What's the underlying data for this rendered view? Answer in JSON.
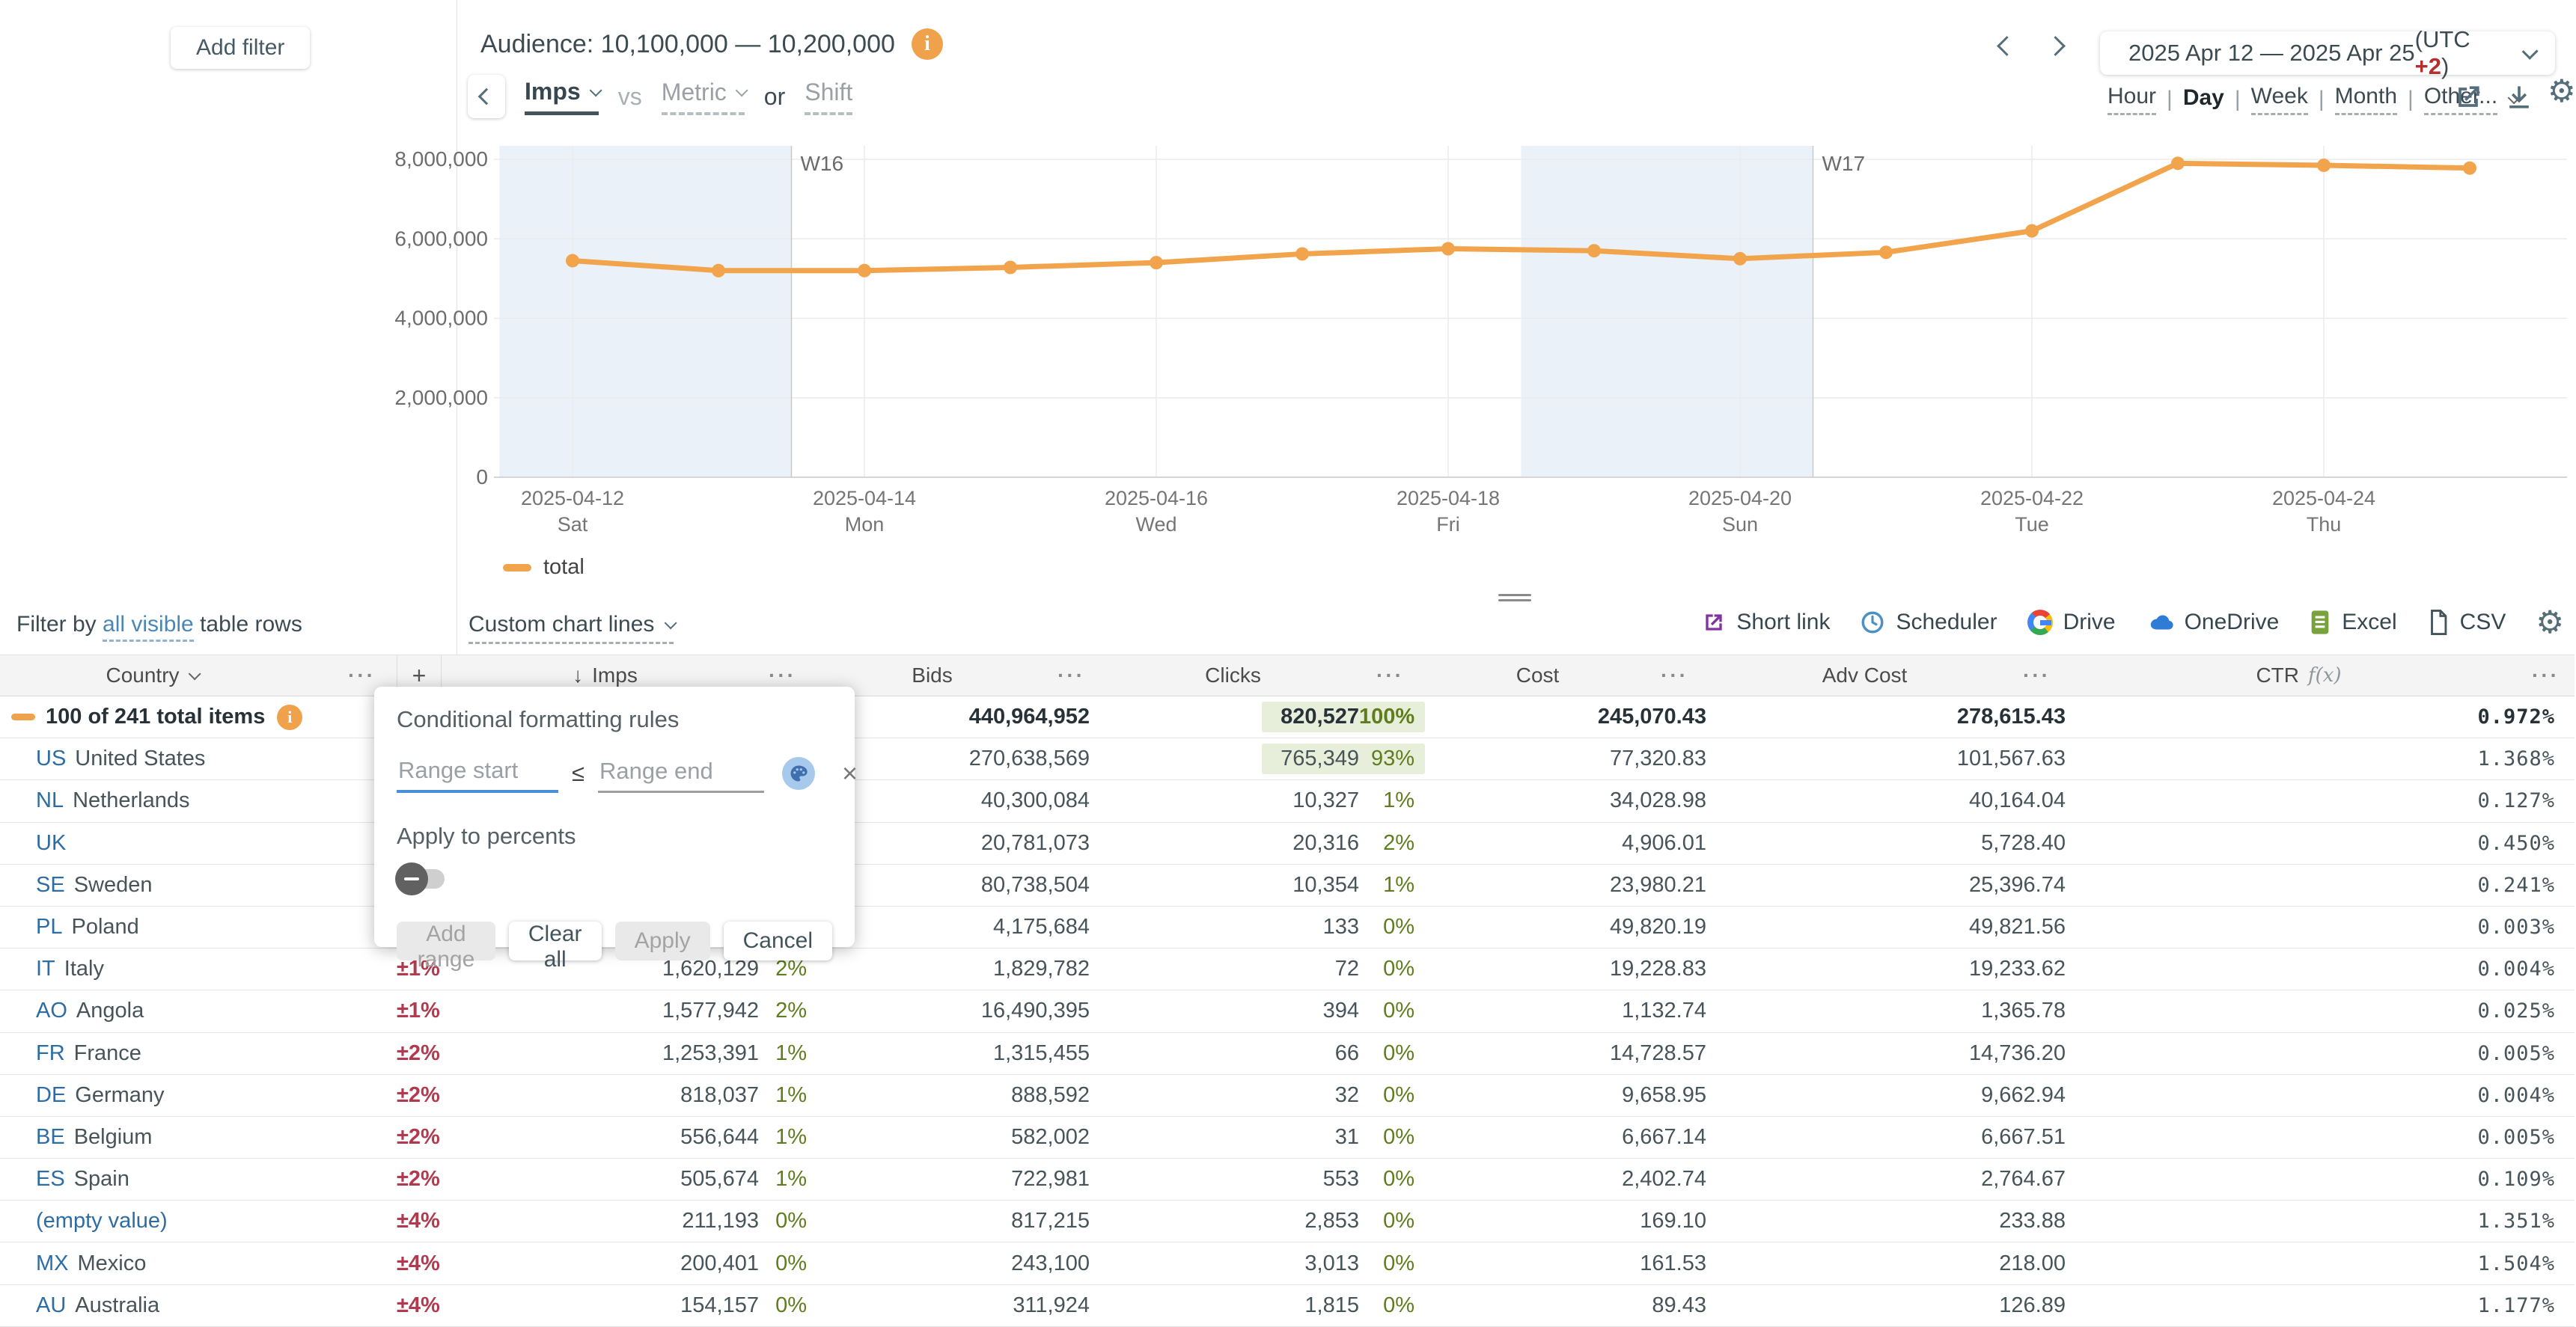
{
  "filters": {
    "add_filter": "Add filter",
    "filter_by_prefix": "Filter by",
    "filter_by_link": "all visible",
    "filter_by_suffix": "table rows"
  },
  "header": {
    "audience": "Audience: 10,100,000 — 10,200,000",
    "metric_selected": "Imps",
    "vs": "vs",
    "metric_placeholder": "Metric",
    "or": "or",
    "shift": "Shift"
  },
  "datepicker": {
    "range": "2025 Apr 12 — 2025 Apr 25",
    "utc_prefix": "(UTC ",
    "utc_value": "+2",
    "utc_suffix": ")"
  },
  "granularity": {
    "options": [
      "Hour",
      "Day",
      "Week",
      "Month",
      "Other..."
    ],
    "selected": "Day"
  },
  "chart_data": {
    "type": "line",
    "title": "",
    "xlabel": "",
    "ylabel": "",
    "ylim": [
      0,
      8450000
    ],
    "yticks": [
      0,
      2000000,
      4000000,
      6000000,
      8000000
    ],
    "legend_position": "bottom-left",
    "series": [
      {
        "name": "total",
        "color": "#f2a44c",
        "x": [
          "2025-04-12",
          "2025-04-13",
          "2025-04-14",
          "2025-04-15",
          "2025-04-16",
          "2025-04-17",
          "2025-04-18",
          "2025-04-19",
          "2025-04-20",
          "2025-04-21",
          "2025-04-22",
          "2025-04-23",
          "2025-04-24",
          "2025-04-25"
        ],
        "values": [
          5450000,
          5200000,
          5200000,
          5280000,
          5400000,
          5620000,
          5750000,
          5700000,
          5500000,
          5660000,
          6200000,
          7900000,
          7850000,
          7780000
        ]
      }
    ],
    "x_tick_labels": [
      {
        "date": "2025-04-12",
        "day": "Sat"
      },
      {
        "date": "2025-04-14",
        "day": "Mon"
      },
      {
        "date": "2025-04-16",
        "day": "Wed"
      },
      {
        "date": "2025-04-18",
        "day": "Fri"
      },
      {
        "date": "2025-04-20",
        "day": "Sun"
      },
      {
        "date": "2025-04-22",
        "day": "Tue"
      },
      {
        "date": "2025-04-24",
        "day": "Thu"
      }
    ],
    "week_markers": [
      {
        "label": "W16",
        "at": "2025-04-14"
      },
      {
        "label": "W17",
        "at": "2025-04-21"
      }
    ],
    "weekend_bands": [
      [
        "2025-04-12",
        "2025-04-13"
      ],
      [
        "2025-04-19",
        "2025-04-20"
      ]
    ]
  },
  "legend_label": "total",
  "custom_chart_lines": "Custom chart lines",
  "export": {
    "short_link": "Short link",
    "scheduler": "Scheduler",
    "drive": "Drive",
    "onedrive": "OneDrive",
    "excel": "Excel",
    "csv": "CSV"
  },
  "popup": {
    "title": "Conditional formatting rules",
    "range_start_placeholder": "Range start",
    "leq": "≤",
    "range_end_placeholder": "Range end",
    "apply_to_percents": "Apply to percents",
    "add_range": "Add range",
    "clear_all": "Clear all",
    "apply": "Apply",
    "cancel": "Cancel"
  },
  "table": {
    "header": {
      "country": "Country",
      "add_column": "+",
      "sort_arrow": "↓",
      "imps": "Imps",
      "bids": "Bids",
      "clicks": "Clicks",
      "cost": "Cost",
      "adv_cost": "Adv Cost",
      "ctr": "CTR",
      "fx": "f(x)",
      "more": "···"
    },
    "rows": [
      {
        "total": true,
        "code": "",
        "name": "100 of 241 total items",
        "change": "",
        "imps": "",
        "imps_pct": "",
        "bids": "440,964,952",
        "clicks": "820,527",
        "clicks_pct": "100%",
        "hl": true,
        "cost": "245,070.43",
        "adv_cost": "278,615.43",
        "ctr": "0.972%"
      },
      {
        "total": false,
        "code": "US",
        "name": "United States",
        "change": "",
        "imps": "",
        "imps_pct": "",
        "bids": "270,638,569",
        "clicks": "765,349",
        "clicks_pct": "93%",
        "hl": true,
        "cost": "77,320.83",
        "adv_cost": "101,567.63",
        "ctr": "1.368%"
      },
      {
        "total": false,
        "code": "NL",
        "name": "Netherlands",
        "change": "",
        "imps": "",
        "imps_pct": "",
        "bids": "40,300,084",
        "clicks": "10,327",
        "clicks_pct": "1%",
        "hl": false,
        "cost": "34,028.98",
        "adv_cost": "40,164.04",
        "ctr": "0.127%"
      },
      {
        "total": false,
        "code": "UK",
        "name": "",
        "change": "",
        "imps": "",
        "imps_pct": "",
        "bids": "20,781,073",
        "clicks": "20,316",
        "clicks_pct": "2%",
        "hl": false,
        "cost": "4,906.01",
        "adv_cost": "5,728.40",
        "ctr": "0.450%"
      },
      {
        "total": false,
        "code": "SE",
        "name": "Sweden",
        "change": "",
        "imps": "",
        "imps_pct": "",
        "bids": "80,738,504",
        "clicks": "10,354",
        "clicks_pct": "1%",
        "hl": false,
        "cost": "23,980.21",
        "adv_cost": "25,396.74",
        "ctr": "0.241%"
      },
      {
        "total": false,
        "code": "PL",
        "name": "Poland",
        "change": "",
        "imps": "",
        "imps_pct": "",
        "bids": "4,175,684",
        "clicks": "133",
        "clicks_pct": "0%",
        "hl": false,
        "cost": "49,820.19",
        "adv_cost": "49,821.56",
        "ctr": "0.003%"
      },
      {
        "total": false,
        "code": "IT",
        "name": "Italy",
        "change": "±1%",
        "imps": "1,620,129",
        "imps_pct": "2%",
        "bids": "1,829,782",
        "clicks": "72",
        "clicks_pct": "0%",
        "hl": false,
        "cost": "19,228.83",
        "adv_cost": "19,233.62",
        "ctr": "0.004%"
      },
      {
        "total": false,
        "code": "AO",
        "name": "Angola",
        "change": "±1%",
        "imps": "1,577,942",
        "imps_pct": "2%",
        "bids": "16,490,395",
        "clicks": "394",
        "clicks_pct": "0%",
        "hl": false,
        "cost": "1,132.74",
        "adv_cost": "1,365.78",
        "ctr": "0.025%"
      },
      {
        "total": false,
        "code": "FR",
        "name": "France",
        "change": "±2%",
        "imps": "1,253,391",
        "imps_pct": "1%",
        "bids": "1,315,455",
        "clicks": "66",
        "clicks_pct": "0%",
        "hl": false,
        "cost": "14,728.57",
        "adv_cost": "14,736.20",
        "ctr": "0.005%"
      },
      {
        "total": false,
        "code": "DE",
        "name": "Germany",
        "change": "±2%",
        "imps": "818,037",
        "imps_pct": "1%",
        "bids": "888,592",
        "clicks": "32",
        "clicks_pct": "0%",
        "hl": false,
        "cost": "9,658.95",
        "adv_cost": "9,662.94",
        "ctr": "0.004%"
      },
      {
        "total": false,
        "code": "BE",
        "name": "Belgium",
        "change": "±2%",
        "imps": "556,644",
        "imps_pct": "1%",
        "bids": "582,002",
        "clicks": "31",
        "clicks_pct": "0%",
        "hl": false,
        "cost": "6,667.14",
        "adv_cost": "6,667.51",
        "ctr": "0.005%"
      },
      {
        "total": false,
        "code": "ES",
        "name": "Spain",
        "change": "±2%",
        "imps": "505,674",
        "imps_pct": "1%",
        "bids": "722,981",
        "clicks": "553",
        "clicks_pct": "0%",
        "hl": false,
        "cost": "2,402.74",
        "adv_cost": "2,764.67",
        "ctr": "0.109%"
      },
      {
        "total": false,
        "code": "",
        "name": "(empty value)",
        "link_name": true,
        "change": "±4%",
        "imps": "211,193",
        "imps_pct": "0%",
        "bids": "817,215",
        "clicks": "2,853",
        "clicks_pct": "0%",
        "hl": false,
        "cost": "169.10",
        "adv_cost": "233.88",
        "ctr": "1.351%"
      },
      {
        "total": false,
        "code": "MX",
        "name": "Mexico",
        "change": "±4%",
        "imps": "200,401",
        "imps_pct": "0%",
        "bids": "243,100",
        "clicks": "3,013",
        "clicks_pct": "0%",
        "hl": false,
        "cost": "161.53",
        "adv_cost": "218.00",
        "ctr": "1.504%"
      },
      {
        "total": false,
        "code": "AU",
        "name": "Australia",
        "change": "±4%",
        "imps": "154,157",
        "imps_pct": "0%",
        "bids": "311,924",
        "clicks": "1,815",
        "clicks_pct": "0%",
        "hl": false,
        "cost": "89.43",
        "adv_cost": "126.89",
        "ctr": "1.177%"
      }
    ]
  }
}
